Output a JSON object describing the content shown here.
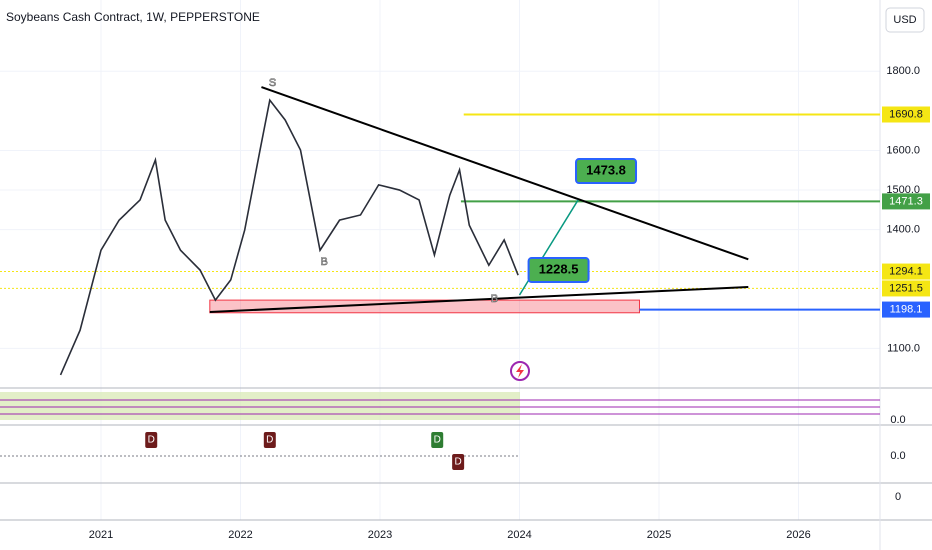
{
  "chart_data": {
    "type": "line",
    "title": "Soybeans Cash Contract, 1W, PEPPERSTONE",
    "currency": "USD",
    "color": "#2a2e39",
    "grid": true,
    "x": [
      2020.71,
      2020.85,
      2021.0,
      2021.13,
      2021.28,
      2021.39,
      2021.46,
      2021.57,
      2021.71,
      2021.82,
      2021.93,
      2022.03,
      2022.14,
      2022.21,
      2022.32,
      2022.43,
      2022.5,
      2022.57,
      2022.71,
      2022.86,
      2022.99,
      2023.14,
      2023.28,
      2023.39,
      2023.5,
      2023.57,
      2023.64,
      2023.78,
      2023.89,
      2023.99
    ],
    "values": [
      1033,
      1146,
      1348,
      1424,
      1475,
      1576,
      1424,
      1348,
      1298,
      1222,
      1273,
      1399,
      1601,
      1727,
      1677,
      1601,
      1475,
      1348,
      1424,
      1437,
      1513,
      1500,
      1475,
      1336,
      1487,
      1551,
      1411,
      1310,
      1374,
      1285
    ],
    "xlim": [
      2020.276,
      2026.584
    ],
    "xticks": [
      2021,
      2022,
      2023,
      2024,
      2025,
      2026
    ],
    "ylim": [
      1000,
      1980
    ],
    "yticks": [
      {
        "value": 1100,
        "label": "1100.0"
      },
      {
        "value": 1400,
        "label": "1400.0"
      },
      {
        "value": 1500,
        "label": "1500.0"
      },
      {
        "value": 1600,
        "label": "1600.0"
      },
      {
        "value": 1800,
        "label": "1800.0"
      }
    ],
    "levels": [
      {
        "value": 1690.8,
        "label": "1690.8",
        "color": "#f5e614",
        "from": 2023.6
      },
      {
        "value": 1471.3,
        "label": "1471.3",
        "color": "#43a047",
        "from": 2023.58
      },
      {
        "value": 1294.1,
        "label": "1294.1",
        "color": "#f5e614",
        "from": 2020.276
      },
      {
        "value": 1251.5,
        "label": "1251.5",
        "color": "#f5e614",
        "from": 2020.276
      },
      {
        "value": 1198.1,
        "label": "1198.1",
        "color": "#2962ff",
        "from": 2024.86
      }
    ],
    "zone": {
      "x": [
        2021.78,
        2024.86
      ],
      "values": [
        1222,
        1190
      ],
      "color": "#f23645"
    },
    "trendlines": [
      {
        "x": [
          2022.15,
          2025.64
        ],
        "values": [
          1760,
          1325
        ]
      },
      {
        "x": [
          2021.78,
          2025.64
        ],
        "values": [
          1192,
          1255
        ]
      }
    ],
    "projection": {
      "x": [
        2024.0,
        2024.42
      ],
      "values": [
        1235,
        1475
      ]
    },
    "targets": [
      {
        "label": "1473.8",
        "x": 2024.62,
        "y": 1548
      },
      {
        "label": "1228.5",
        "x": 2024.28,
        "y": 1298
      }
    ],
    "annotations": [
      {
        "label": "S",
        "x": 2022.23,
        "y": 1770
      },
      {
        "label": "B",
        "x": 2022.6,
        "y": 1318
      },
      {
        "label": "B",
        "x": 2023.82,
        "y": 1225
      }
    ],
    "panes": [
      {
        "label": "0.0",
        "tags": []
      },
      {
        "label": "0.0",
        "tags": [
          {
            "label": "D",
            "color": "#6d1b1b",
            "x": 2021.36
          },
          {
            "label": "D",
            "color": "#6d1b1b",
            "x": 2022.21
          },
          {
            "label": "D",
            "color": "#2e7d32",
            "x": 2023.41
          },
          {
            "label": "D",
            "color": "#6d1b1b",
            "x": 2023.56
          }
        ]
      },
      {
        "label": "0",
        "tags": []
      }
    ]
  }
}
